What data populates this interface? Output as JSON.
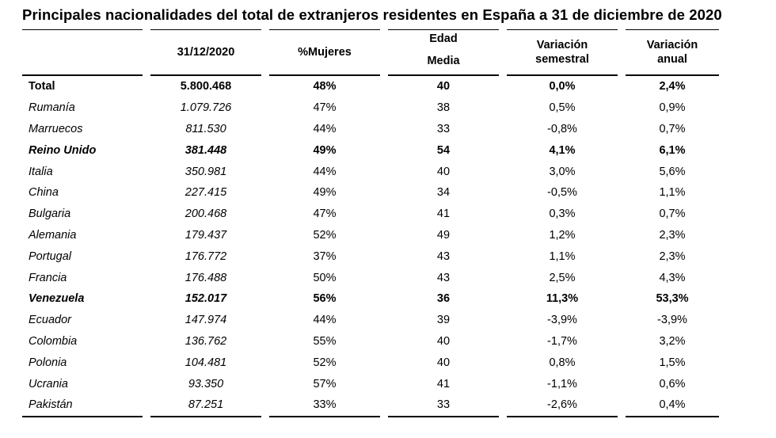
{
  "title": "Principales nacionalidades del total de extranjeros residentes en España a 31 de diciembre de 2020",
  "headers": {
    "date": "31/12/2020",
    "women": "%Mujeres",
    "age_line1": "Edad",
    "age_line2": "Media",
    "sem_line1": "Variación",
    "sem_line2": "semestral",
    "ann_line1": "Variación",
    "ann_line2": "anual"
  },
  "rows": [
    {
      "name": "Total",
      "value": "5.800.468",
      "women": "48%",
      "age": "40",
      "sem": "0,0%",
      "ann": "2,4%"
    },
    {
      "name": "Rumanía",
      "value": "1.079.726",
      "women": "47%",
      "age": "38",
      "sem": "0,5%",
      "ann": "0,9%"
    },
    {
      "name": "Marruecos",
      "value": "811.530",
      "women": "44%",
      "age": "33",
      "sem": "-0,8%",
      "ann": "0,7%"
    },
    {
      "name": "Reino Unido",
      "value": "381.448",
      "women": "49%",
      "age": "54",
      "sem": "4,1%",
      "ann": "6,1%"
    },
    {
      "name": "Italia",
      "value": "350.981",
      "women": "44%",
      "age": "40",
      "sem": "3,0%",
      "ann": "5,6%"
    },
    {
      "name": "China",
      "value": "227.415",
      "women": "49%",
      "age": "34",
      "sem": "-0,5%",
      "ann": "1,1%"
    },
    {
      "name": "Bulgaria",
      "value": "200.468",
      "women": "47%",
      "age": "41",
      "sem": "0,3%",
      "ann": "0,7%"
    },
    {
      "name": "Alemania",
      "value": "179.437",
      "women": "52%",
      "age": "49",
      "sem": "1,2%",
      "ann": "2,3%"
    },
    {
      "name": "Portugal",
      "value": "176.772",
      "women": "37%",
      "age": "43",
      "sem": "1,1%",
      "ann": "2,3%"
    },
    {
      "name": "Francia",
      "value": "176.488",
      "women": "50%",
      "age": "43",
      "sem": "2,5%",
      "ann": "4,3%"
    },
    {
      "name": "Venezuela",
      "value": "152.017",
      "women": "56%",
      "age": "36",
      "sem": "11,3%",
      "ann": "53,3%"
    },
    {
      "name": "Ecuador",
      "value": "147.974",
      "women": "44%",
      "age": "39",
      "sem": "-3,9%",
      "ann": "-3,9%"
    },
    {
      "name": "Colombia",
      "value": "136.762",
      "women": "55%",
      "age": "40",
      "sem": "-1,7%",
      "ann": "3,2%"
    },
    {
      "name": "Polonia",
      "value": "104.481",
      "women": "52%",
      "age": "40",
      "sem": "0,8%",
      "ann": "1,5%"
    },
    {
      "name": "Ucrania",
      "value": "93.350",
      "women": "57%",
      "age": "41",
      "sem": "-1,1%",
      "ann": "0,6%"
    },
    {
      "name": "Pakistán",
      "value": "87.251",
      "women": "33%",
      "age": "33",
      "sem": "-2,6%",
      "ann": "0,4%"
    }
  ]
}
